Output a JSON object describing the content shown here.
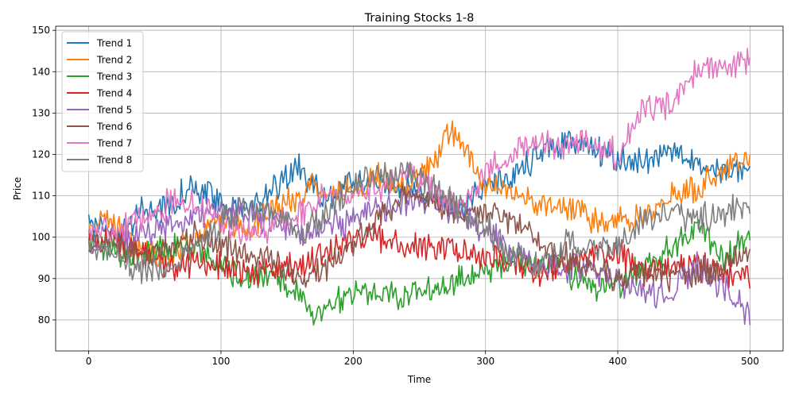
{
  "chart_data": {
    "type": "line",
    "title": "Training Stocks 1-8",
    "xlabel": "Time",
    "ylabel": "Price",
    "xlim": [
      -25,
      525
    ],
    "ylim": [
      72.5,
      151
    ],
    "xticks": [
      0,
      100,
      200,
      300,
      400,
      500
    ],
    "yticks": [
      80,
      90,
      100,
      110,
      120,
      130,
      140,
      150
    ],
    "grid": true,
    "legend": "top-left",
    "x_range": [
      0,
      500
    ],
    "series": [
      {
        "name": "Trend 1",
        "color": "#1f77b4",
        "keypoints": [
          [
            0,
            104
          ],
          [
            20,
            100
          ],
          [
            40,
            106
          ],
          [
            60,
            108
          ],
          [
            80,
            112
          ],
          [
            100,
            108
          ],
          [
            120,
            106
          ],
          [
            140,
            112
          ],
          [
            160,
            117
          ],
          [
            180,
            108
          ],
          [
            200,
            114
          ],
          [
            220,
            113
          ],
          [
            240,
            112
          ],
          [
            260,
            110
          ],
          [
            280,
            107
          ],
          [
            300,
            113
          ],
          [
            320,
            115
          ],
          [
            340,
            120
          ],
          [
            360,
            123
          ],
          [
            380,
            122
          ],
          [
            400,
            118
          ],
          [
            420,
            118
          ],
          [
            440,
            122
          ],
          [
            460,
            117
          ],
          [
            480,
            115
          ],
          [
            500,
            117
          ]
        ]
      },
      {
        "name": "Trend 2",
        "color": "#ff7f0e",
        "keypoints": [
          [
            0,
            101
          ],
          [
            10,
            105
          ],
          [
            20,
            103
          ],
          [
            40,
            97
          ],
          [
            60,
            95
          ],
          [
            80,
            100
          ],
          [
            100,
            104
          ],
          [
            120,
            101
          ],
          [
            140,
            108
          ],
          [
            160,
            110
          ],
          [
            170,
            114
          ],
          [
            180,
            110
          ],
          [
            200,
            112
          ],
          [
            220,
            115
          ],
          [
            240,
            112
          ],
          [
            260,
            117
          ],
          [
            270,
            125
          ],
          [
            280,
            124
          ],
          [
            290,
            118
          ],
          [
            300,
            112
          ],
          [
            320,
            112
          ],
          [
            340,
            108
          ],
          [
            360,
            107
          ],
          [
            380,
            104
          ],
          [
            400,
            105
          ],
          [
            420,
            105
          ],
          [
            440,
            110
          ],
          [
            460,
            112
          ],
          [
            480,
            116
          ],
          [
            500,
            120
          ]
        ]
      },
      {
        "name": "Trend 3",
        "color": "#2ca02c",
        "keypoints": [
          [
            0,
            99
          ],
          [
            20,
            97
          ],
          [
            40,
            96
          ],
          [
            60,
            97
          ],
          [
            80,
            97
          ],
          [
            100,
            93
          ],
          [
            120,
            90
          ],
          [
            140,
            92
          ],
          [
            160,
            86
          ],
          [
            170,
            81
          ],
          [
            180,
            84
          ],
          [
            200,
            86
          ],
          [
            220,
            87
          ],
          [
            240,
            85
          ],
          [
            260,
            88
          ],
          [
            280,
            90
          ],
          [
            300,
            92
          ],
          [
            320,
            95
          ],
          [
            340,
            94
          ],
          [
            360,
            92
          ],
          [
            380,
            88
          ],
          [
            400,
            89
          ],
          [
            420,
            93
          ],
          [
            440,
            97
          ],
          [
            460,
            102
          ],
          [
            480,
            95
          ],
          [
            500,
            101
          ]
        ]
      },
      {
        "name": "Trend 4",
        "color": "#d62728",
        "keypoints": [
          [
            0,
            99
          ],
          [
            20,
            100
          ],
          [
            40,
            97
          ],
          [
            60,
            93
          ],
          [
            80,
            94
          ],
          [
            100,
            93
          ],
          [
            120,
            92
          ],
          [
            140,
            92
          ],
          [
            160,
            93
          ],
          [
            180,
            96
          ],
          [
            200,
            100
          ],
          [
            220,
            100
          ],
          [
            240,
            98
          ],
          [
            260,
            98
          ],
          [
            280,
            97
          ],
          [
            300,
            95
          ],
          [
            320,
            94
          ],
          [
            340,
            92
          ],
          [
            360,
            93
          ],
          [
            380,
            96
          ],
          [
            400,
            96
          ],
          [
            420,
            92
          ],
          [
            440,
            92
          ],
          [
            460,
            93
          ],
          [
            480,
            92
          ],
          [
            500,
            90
          ]
        ]
      },
      {
        "name": "Trend 5",
        "color": "#9467bd",
        "keypoints": [
          [
            0,
            98
          ],
          [
            20,
            100
          ],
          [
            40,
            101
          ],
          [
            60,
            103
          ],
          [
            80,
            104
          ],
          [
            100,
            106
          ],
          [
            120,
            106
          ],
          [
            140,
            104
          ],
          [
            160,
            101
          ],
          [
            180,
            102
          ],
          [
            200,
            104
          ],
          [
            220,
            107
          ],
          [
            240,
            109
          ],
          [
            260,
            108
          ],
          [
            280,
            106
          ],
          [
            300,
            102
          ],
          [
            320,
            97
          ],
          [
            340,
            94
          ],
          [
            360,
            93
          ],
          [
            380,
            92
          ],
          [
            400,
            90
          ],
          [
            420,
            86
          ],
          [
            440,
            87
          ],
          [
            460,
            93
          ],
          [
            480,
            88
          ],
          [
            500,
            81
          ]
        ]
      },
      {
        "name": "Trend 6",
        "color": "#8c564b",
        "keypoints": [
          [
            0,
            98
          ],
          [
            20,
            99
          ],
          [
            40,
            96
          ],
          [
            60,
            97
          ],
          [
            80,
            100
          ],
          [
            100,
            98
          ],
          [
            120,
            97
          ],
          [
            140,
            94
          ],
          [
            160,
            89
          ],
          [
            180,
            93
          ],
          [
            200,
            98
          ],
          [
            220,
            105
          ],
          [
            240,
            110
          ],
          [
            260,
            109
          ],
          [
            280,
            106
          ],
          [
            300,
            106
          ],
          [
            320,
            104
          ],
          [
            340,
            100
          ],
          [
            360,
            95
          ],
          [
            380,
            92
          ],
          [
            400,
            90
          ],
          [
            420,
            92
          ],
          [
            440,
            90
          ],
          [
            460,
            91
          ],
          [
            480,
            93
          ],
          [
            500,
            97
          ]
        ]
      },
      {
        "name": "Trend 7",
        "color": "#e377c2",
        "keypoints": [
          [
            0,
            101
          ],
          [
            20,
            102
          ],
          [
            40,
            104
          ],
          [
            60,
            108
          ],
          [
            80,
            108
          ],
          [
            100,
            104
          ],
          [
            120,
            100
          ],
          [
            140,
            103
          ],
          [
            160,
            106
          ],
          [
            180,
            110
          ],
          [
            200,
            111
          ],
          [
            220,
            112
          ],
          [
            240,
            115
          ],
          [
            260,
            112
          ],
          [
            280,
            107
          ],
          [
            300,
            115
          ],
          [
            320,
            120
          ],
          [
            340,
            124
          ],
          [
            360,
            122
          ],
          [
            380,
            123
          ],
          [
            400,
            120
          ],
          [
            410,
            126
          ],
          [
            420,
            130
          ],
          [
            440,
            133
          ],
          [
            460,
            140
          ],
          [
            480,
            142
          ],
          [
            500,
            143
          ]
        ]
      },
      {
        "name": "Trend 8",
        "color": "#7f7f7f",
        "keypoints": [
          [
            0,
            96
          ],
          [
            20,
            96
          ],
          [
            40,
            92
          ],
          [
            60,
            93
          ],
          [
            80,
            97
          ],
          [
            100,
            103
          ],
          [
            120,
            107
          ],
          [
            140,
            107
          ],
          [
            160,
            101
          ],
          [
            180,
            106
          ],
          [
            200,
            112
          ],
          [
            220,
            116
          ],
          [
            240,
            116
          ],
          [
            260,
            112
          ],
          [
            280,
            107
          ],
          [
            300,
            103
          ],
          [
            320,
            95
          ],
          [
            340,
            94
          ],
          [
            360,
            98
          ],
          [
            380,
            98
          ],
          [
            400,
            98
          ],
          [
            420,
            105
          ],
          [
            440,
            106
          ],
          [
            460,
            104
          ],
          [
            480,
            106
          ],
          [
            500,
            108
          ]
        ]
      }
    ]
  }
}
